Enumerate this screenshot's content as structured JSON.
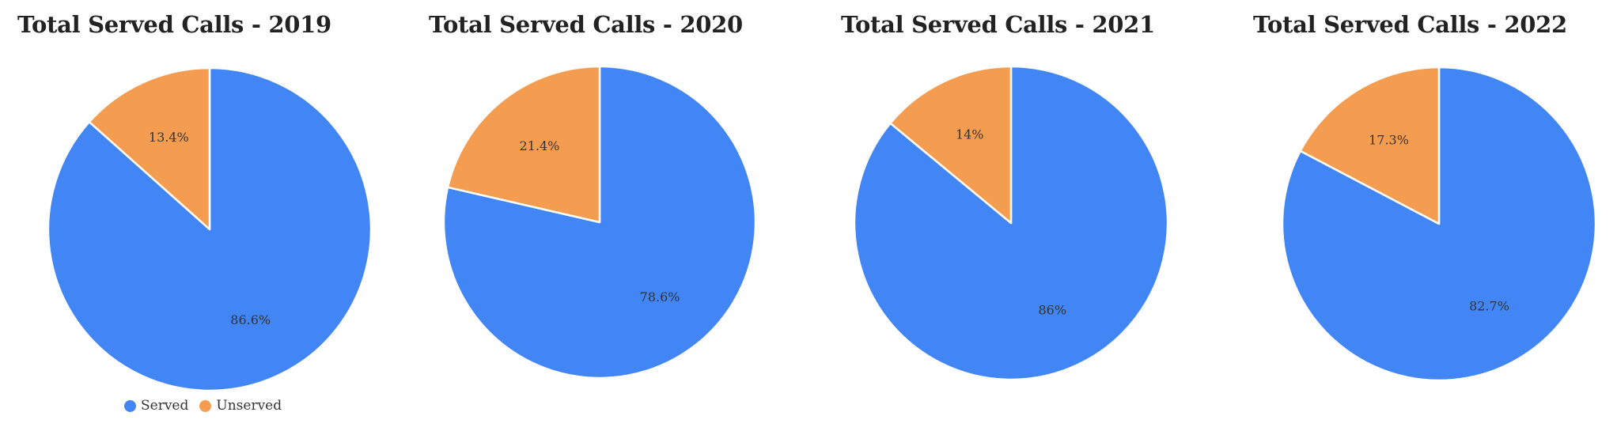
{
  "chart_data": [
    {
      "type": "pie",
      "title": "Total Served Calls - 2019",
      "categories": [
        "Served",
        "Unserved"
      ],
      "values": [
        86.6,
        13.4
      ],
      "labels": [
        "86.6%",
        "13.4%"
      ],
      "colors": [
        "#4285f4",
        "#f49d50"
      ],
      "legend": {
        "position": "bottom",
        "entries": [
          "Served",
          "Unserved"
        ]
      }
    },
    {
      "type": "pie",
      "title": "Total Served Calls - 2020",
      "categories": [
        "Served",
        "Unserved"
      ],
      "values": [
        78.6,
        21.4
      ],
      "labels": [
        "78.6%",
        "21.4%"
      ],
      "colors": [
        "#4285f4",
        "#f49d50"
      ]
    },
    {
      "type": "pie",
      "title": "Total Served Calls - 2021",
      "categories": [
        "Served",
        "Unserved"
      ],
      "values": [
        86,
        14
      ],
      "labels": [
        "86%",
        "14%"
      ],
      "colors": [
        "#4285f4",
        "#f49d50"
      ]
    },
    {
      "type": "pie",
      "title": "Total Served Calls - 2022",
      "categories": [
        "Served",
        "Unserved"
      ],
      "values": [
        82.7,
        17.3
      ],
      "labels": [
        "82.7%",
        "17.3%"
      ],
      "colors": [
        "#4285f4",
        "#f49d50"
      ]
    }
  ]
}
